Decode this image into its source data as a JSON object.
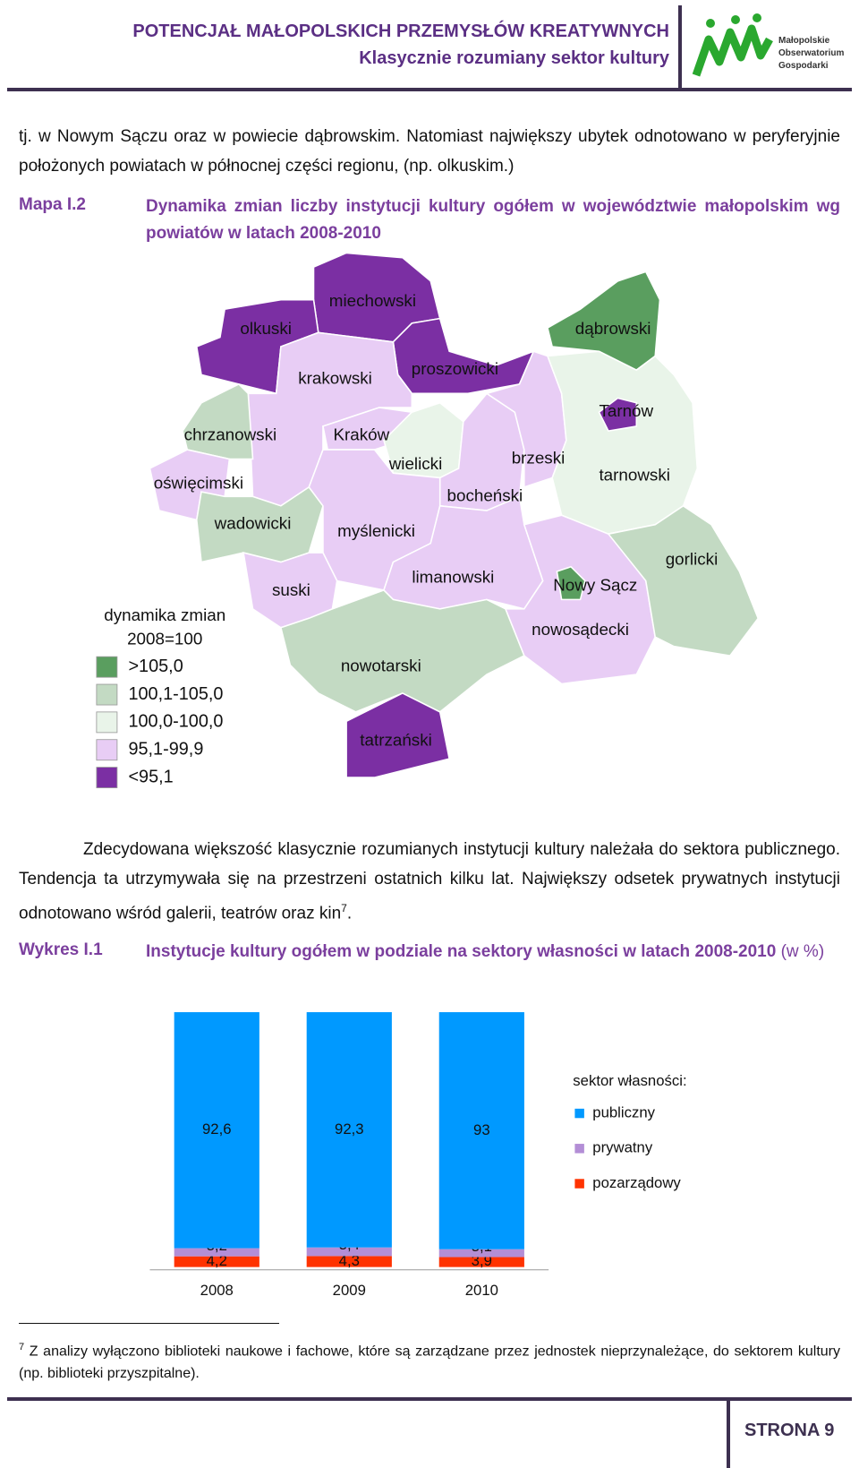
{
  "header": {
    "title": "POTENCJAŁ MAŁOPOLSKICH PRZEMYSŁÓW KREATYWNYCH",
    "subtitle": "Klasycznie rozumiany sektor kultury",
    "logo": [
      "Małopolskie",
      "Obserwatorium",
      "Gospodarki"
    ]
  },
  "paragraph1": "tj. w Nowym Sączu oraz w powiecie dąbrowskim. Natomiast największy ubytek odnotowano w peryferyjnie położonych powiatach w północnej części regionu, (np. olkuskim.)",
  "map": {
    "label": "Mapa I.2",
    "title": "Dynamika zmian liczby instytucji kultury ogółem w województwie małopolskim wg powiatów w latach 2008-2010",
    "legend_title": [
      "dynamika zmian",
      "2008=100"
    ],
    "legend": [
      {
        "label": ">105,0",
        "color": "#5a9e5f"
      },
      {
        "label": "100,1-105,0",
        "color": "#c3dac3"
      },
      {
        "label": "100,0-100,0",
        "color": "#e9f4e9"
      },
      {
        "label": "95,1-99,9",
        "color": "#e8cdf5"
      },
      {
        "label": "<95,1",
        "color": "#7b2fa3"
      }
    ],
    "regions": [
      {
        "name": "miechowski",
        "color": "#7b2fa3"
      },
      {
        "name": "olkuski",
        "color": "#7b2fa3"
      },
      {
        "name": "proszowicki",
        "color": "#7b2fa3"
      },
      {
        "name": "dąbrowski",
        "color": "#5a9e5f"
      },
      {
        "name": "krakowski",
        "color": "#e8cdf5"
      },
      {
        "name": "chrzanowski",
        "color": "#c3dac3"
      },
      {
        "name": "oświęcimski",
        "color": "#e8cdf5"
      },
      {
        "name": "wadowicki",
        "color": "#c3dac3"
      },
      {
        "name": "Kraków",
        "color": "#e8cdf5"
      },
      {
        "name": "wielicki",
        "color": "#e9f4e9"
      },
      {
        "name": "bocheński",
        "color": "#e8cdf5"
      },
      {
        "name": "brzeski",
        "color": "#e8cdf5"
      },
      {
        "name": "tarnowski",
        "color": "#e9f4e9"
      },
      {
        "name": "Tarnów",
        "color": "#7b2fa3"
      },
      {
        "name": "myślenicki",
        "color": "#e8cdf5"
      },
      {
        "name": "suski",
        "color": "#e8cdf5"
      },
      {
        "name": "limanowski",
        "color": "#e8cdf5"
      },
      {
        "name": "nowosądecki",
        "color": "#e8cdf5"
      },
      {
        "name": "Nowy Sącz",
        "color": "#5a9e5f"
      },
      {
        "name": "gorlicki",
        "color": "#c3dac3"
      },
      {
        "name": "nowotarski",
        "color": "#c3dac3"
      },
      {
        "name": "tatrzański",
        "color": "#7b2fa3"
      }
    ]
  },
  "paragraph2": {
    "text": "Zdecydowana większość klasycznie rozumianych instytucji kultury należała do sektora publicznego. Tendencja ta utrzymywała się na przestrzeni ostatnich kilku lat. Największy odsetek prywatnych instytucji odnotowano wśród galerii, teatrów oraz kin",
    "footnote_ref": "7",
    "tail": "."
  },
  "chart_data": {
    "type": "bar",
    "stacked": true,
    "label": "Wykres I.1",
    "title": "Instytucje kultury ogółem w podziale na sektory własności w latach 2008-2010",
    "unit": "(w %)",
    "categories": [
      "2008",
      "2009",
      "2010"
    ],
    "ylim": [
      0,
      100
    ],
    "legend_title": "sektor własności:",
    "series": [
      {
        "name": "publiczny",
        "color": "#0099ff",
        "values": [
          92.6,
          92.3,
          93
        ],
        "value_labels": [
          "92,6",
          "92,3",
          "93"
        ]
      },
      {
        "name": "prywatny",
        "color": "#b38ed6",
        "values": [
          3.2,
          3.4,
          3.1
        ],
        "value_labels": [
          "3,2",
          "3,4",
          "3,1"
        ]
      },
      {
        "name": "pozarządowy",
        "color": "#ff3300",
        "values": [
          4.2,
          4.3,
          3.9
        ],
        "value_labels": [
          "4,2",
          "4,3",
          "3,9"
        ]
      }
    ]
  },
  "footnote": {
    "marker": "7",
    "text": "Z analizy wyłączono biblioteki naukowe i fachowe, które są zarządzane przez jednostek nieprzynależące, do sektorem kultury (np. biblioteki przyszpitalne)."
  },
  "page_number": "STRONA 9"
}
